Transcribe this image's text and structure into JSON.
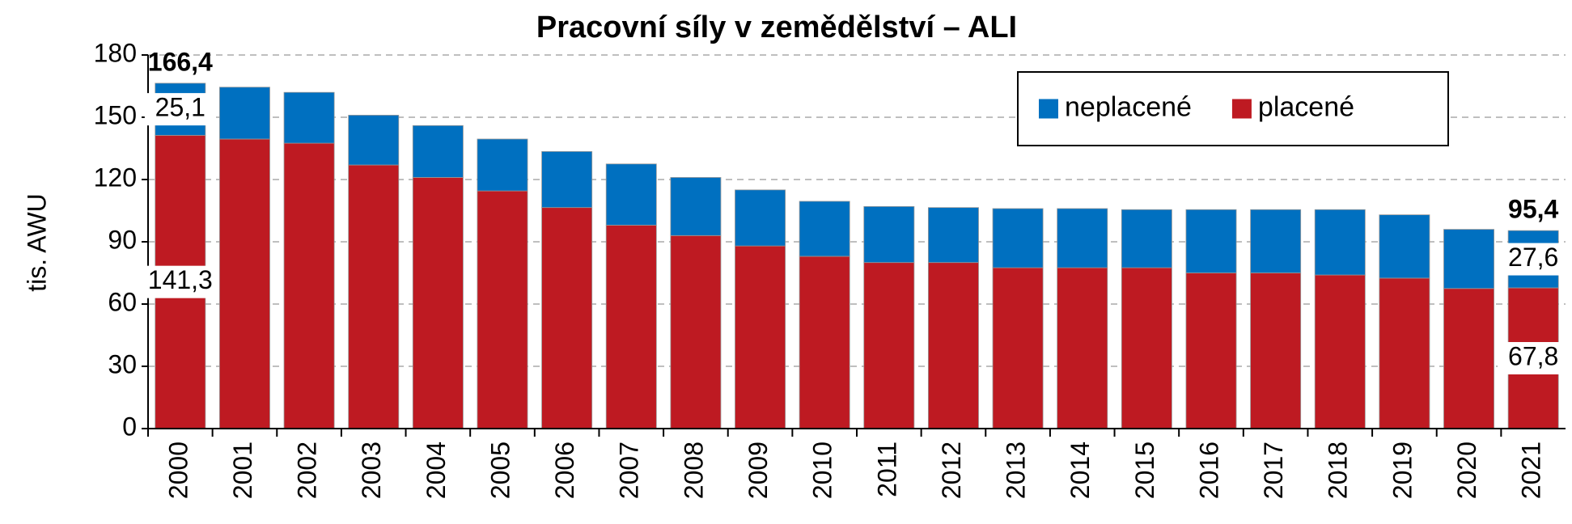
{
  "chart_data": {
    "type": "stacked-bar",
    "title": "Pracovní síly v zemědělství – ALI",
    "y_label": "tis. AWU",
    "categories": [
      "2000",
      "2001",
      "2002",
      "2003",
      "2004",
      "2005",
      "2006",
      "2007",
      "2008",
      "2009",
      "2010",
      "2011",
      "2012",
      "2013",
      "2014",
      "2015",
      "2016",
      "2017",
      "2018",
      "2019",
      "2020",
      "2021"
    ],
    "series": [
      {
        "name": "neplacené",
        "color": "#0070c0",
        "values": [
          25.1,
          25,
          24.5,
          24,
          25,
          25,
          27,
          29.5,
          28,
          27,
          26.5,
          27,
          26.5,
          28.5,
          28.5,
          28,
          30.5,
          30.5,
          31.5,
          30.5,
          28.5,
          27.6
        ],
        "value_labels": [
          "25,1",
          null,
          null,
          null,
          null,
          null,
          null,
          null,
          null,
          null,
          null,
          null,
          null,
          null,
          null,
          null,
          null,
          null,
          null,
          null,
          null,
          "27,6"
        ]
      },
      {
        "name": "placené",
        "color": "#be1a22",
        "values": [
          141.3,
          139.5,
          137.5,
          127,
          121,
          114.5,
          106.5,
          98,
          93,
          88,
          83,
          80,
          80,
          77.5,
          77.5,
          77.5,
          75,
          75,
          74,
          72.5,
          67.5,
          67.8
        ],
        "value_labels": [
          "141,3",
          null,
          null,
          null,
          null,
          null,
          null,
          null,
          null,
          null,
          null,
          null,
          null,
          null,
          null,
          null,
          null,
          null,
          null,
          null,
          null,
          "67,8"
        ]
      }
    ],
    "total_labels": [
      "166,4",
      null,
      null,
      null,
      null,
      null,
      null,
      null,
      null,
      null,
      null,
      null,
      null,
      null,
      null,
      null,
      null,
      null,
      null,
      null,
      null,
      "95,4"
    ],
    "ylim": [
      0,
      180
    ],
    "yticks": [
      0,
      30,
      60,
      90,
      120,
      150,
      180
    ],
    "grid": true,
    "legend": "top-right"
  }
}
